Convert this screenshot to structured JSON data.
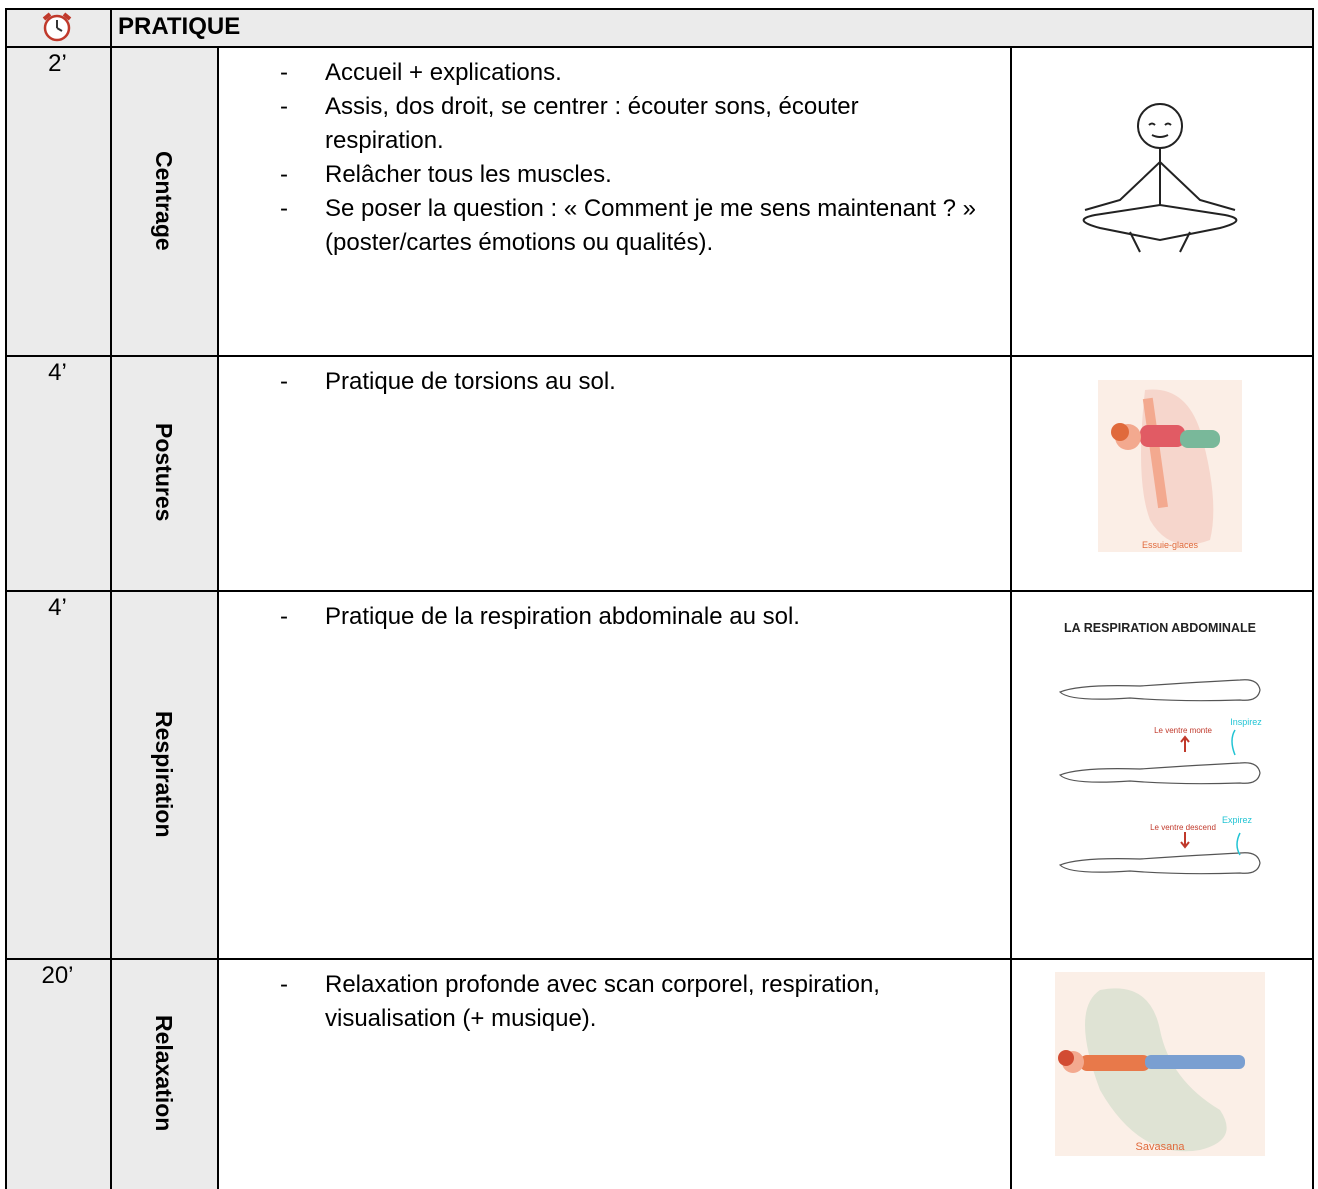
{
  "header": {
    "title": "PRATIQUE"
  },
  "rows": [
    {
      "duration": "2’",
      "label": "Centrage",
      "items": [
        "Accueil + explications.",
        "Assis, dos droit, se centrer : écouter sons, écouter respiration.",
        "Relâcher tous les muscles.",
        "Se poser la question : « Comment je me sens maintenant ? » (poster/cartes émotions ou qualités)."
      ]
    },
    {
      "duration": "4’",
      "label": "Postures",
      "items": [
        "Pratique de torsions au sol."
      ],
      "image": {
        "caption": "Essuie-glaces"
      }
    },
    {
      "duration": "4’",
      "label": "Respiration",
      "items": [
        "Pratique de la respiration abdominale au sol."
      ],
      "image": {
        "title": "LA RESPIRATION ABDOMINALE",
        "labels": [
          "Le ventre monte",
          "Inspirez",
          "Le ventre descend",
          "Expirez"
        ]
      }
    },
    {
      "duration": "20’",
      "label": "Relaxation",
      "items": [
        "Relaxation profonde avec scan corporel, respiration, visualisation (+ musique)."
      ],
      "image": {
        "caption": "Savasana"
      }
    }
  ]
}
